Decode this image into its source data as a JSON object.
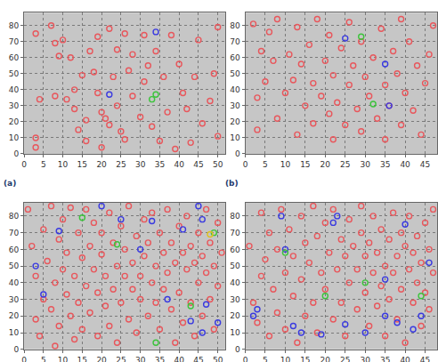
{
  "chart_data": [
    {
      "type": "scatter",
      "title": "(a)",
      "xlim": [
        0,
        52
      ],
      "ylim": [
        0,
        88
      ],
      "xticks": [
        0,
        5,
        10,
        15,
        20,
        25,
        30,
        35,
        40,
        45,
        50
      ],
      "yticks": [
        0,
        10,
        20,
        30,
        40,
        50,
        60,
        70,
        80
      ],
      "grid": true,
      "marker": "circle-open",
      "series": [
        {
          "color": "#e8575c",
          "x": [
            3,
            4,
            3,
            3,
            7,
            8,
            8,
            9,
            10,
            11,
            12,
            13,
            13,
            14,
            15,
            16,
            17,
            18,
            19,
            19,
            20,
            21,
            22,
            22,
            23,
            24,
            24,
            25,
            26,
            27,
            28,
            28,
            30,
            31,
            31,
            32,
            33,
            34,
            35,
            36,
            37,
            38,
            39,
            40,
            41,
            42,
            43,
            44,
            45,
            46,
            48,
            49,
            50,
            50,
            20,
            16,
            26
          ],
          "y": [
            75,
            34,
            10,
            4,
            80,
            69,
            36,
            61,
            71,
            34,
            60,
            28,
            40,
            15,
            49,
            21,
            64,
            51,
            73,
            38,
            26,
            22,
            18,
            78,
            48,
            65,
            30,
            14,
            75,
            52,
            62,
            36,
            23,
            45,
            74,
            55,
            17,
            64,
            8,
            48,
            26,
            74,
            3,
            56,
            38,
            28,
            7,
            48,
            71,
            19,
            33,
            50,
            79,
            11,
            4,
            8,
            9
          ]
        },
        {
          "color": "#3a3ae0",
          "x": [
            34,
            22
          ],
          "y": [
            76,
            37
          ]
        },
        {
          "color": "#3cc43c",
          "x": [
            34,
            33
          ],
          "y": [
            37,
            34
          ]
        }
      ]
    },
    {
      "type": "scatter",
      "title": "(b)",
      "xlim": [
        0,
        48
      ],
      "ylim": [
        0,
        88
      ],
      "xticks": [
        0,
        5,
        10,
        15,
        20,
        25,
        30,
        35,
        40,
        45
      ],
      "yticks": [
        0,
        10,
        20,
        30,
        40,
        50,
        60,
        70,
        80
      ],
      "grid": true,
      "marker": "circle-open",
      "series": [
        {
          "color": "#e8575c",
          "x": [
            2,
            3,
            3,
            4,
            5,
            6,
            7,
            8,
            8,
            10,
            11,
            12,
            13,
            13,
            14,
            15,
            16,
            17,
            17,
            18,
            19,
            20,
            21,
            21,
            22,
            22,
            23,
            24,
            25,
            26,
            26,
            27,
            28,
            29,
            29,
            30,
            31,
            32,
            33,
            34,
            35,
            35,
            36,
            37,
            38,
            39,
            39,
            40,
            41,
            42,
            43,
            44,
            45,
            46,
            47
          ],
          "y": [
            81,
            35,
            15,
            64,
            45,
            76,
            58,
            22,
            84,
            38,
            62,
            46,
            12,
            79,
            56,
            30,
            68,
            19,
            44,
            84,
            36,
            58,
            25,
            74,
            49,
            9,
            32,
            66,
            18,
            43,
            82,
            55,
            28,
            70,
            14,
            48,
            36,
            60,
            22,
            78,
            43,
            9,
            30,
            64,
            50,
            18,
            84,
            38,
            70,
            27,
            55,
            12,
            44,
            62,
            80
          ]
        },
        {
          "color": "#3a3ae0",
          "x": [
            25,
            35,
            36
          ],
          "y": [
            72,
            56,
            30
          ]
        },
        {
          "color": "#3cc43c",
          "x": [
            29,
            32
          ],
          "y": [
            73,
            31
          ]
        }
      ]
    },
    {
      "type": "scatter",
      "xlim": [
        0,
        52
      ],
      "ylim": [
        0,
        88
      ],
      "xticks": [
        0,
        5,
        10,
        15,
        20,
        25,
        30,
        35,
        40,
        45,
        50
      ],
      "yticks": [
        0,
        10,
        20,
        30,
        40,
        50,
        60,
        70,
        80
      ],
      "grid": true,
      "marker": "circle-open",
      "series": [
        {
          "color": "#e8575c",
          "x": [
            1,
            2,
            3,
            3,
            4,
            5,
            5,
            6,
            7,
            7,
            8,
            8,
            9,
            9,
            10,
            10,
            11,
            11,
            12,
            12,
            13,
            13,
            14,
            14,
            15,
            15,
            16,
            16,
            17,
            17,
            18,
            18,
            19,
            19,
            20,
            20,
            21,
            21,
            22,
            22,
            23,
            23,
            24,
            24,
            25,
            25,
            26,
            26,
            27,
            27,
            28,
            28,
            29,
            29,
            30,
            30,
            31,
            31,
            32,
            32,
            33,
            33,
            34,
            34,
            35,
            35,
            36,
            36,
            37,
            37,
            38,
            38,
            39,
            39,
            40,
            40,
            41,
            41,
            42,
            42,
            43,
            43,
            44,
            44,
            45,
            45,
            46,
            46,
            47,
            47,
            48,
            48,
            49,
            49,
            50,
            50,
            51
          ],
          "y": [
            84,
            62,
            44,
            18,
            8,
            72,
            30,
            53,
            86,
            24,
            40,
            2,
            66,
            14,
            78,
            48,
            33,
            58,
            20,
            85,
            44,
            6,
            70,
            28,
            55,
            12,
            38,
            84,
            62,
            22,
            48,
            76,
            8,
            34,
            57,
            70,
            26,
            44,
            82,
            14,
            64,
            36,
            50,
            4,
            74,
            28,
            44,
            60,
            18,
            86,
            36,
            52,
            68,
            10,
            44,
            30,
            78,
            56,
            20,
            64,
            40,
            82,
            50,
            28,
            70,
            12,
            58,
            36,
            84,
            46,
            24,
            64,
            4,
            52,
            74,
            34,
            58,
            16,
            48,
            80,
            28,
            62,
            52,
            8,
            70,
            40,
            56,
            20,
            84,
            46,
            64,
            30,
            50,
            12,
            76,
            38,
            58
          ]
        },
        {
          "color": "#3a3ae0",
          "x": [
            3,
            5,
            9,
            20,
            25,
            30,
            33,
            37,
            41,
            45,
            46,
            46,
            50,
            43,
            47
          ],
          "y": [
            50,
            33,
            71,
            86,
            78,
            60,
            77,
            30,
            72,
            86,
            10,
            78,
            16,
            17,
            27
          ]
        },
        {
          "color": "#3cc43c",
          "x": [
            15,
            24,
            34,
            43,
            49
          ],
          "y": [
            79,
            63,
            4,
            26,
            70
          ]
        },
        {
          "color": "#e0c020",
          "x": [
            48
          ],
          "y": [
            69
          ]
        }
      ]
    },
    {
      "type": "scatter",
      "xlim": [
        0,
        48
      ],
      "ylim": [
        0,
        88
      ],
      "xticks": [
        0,
        5,
        10,
        15,
        20,
        25,
        30,
        35,
        40,
        45
      ],
      "yticks": [
        0,
        10,
        20,
        30,
        40,
        50,
        60,
        70,
        80
      ],
      "grid": true,
      "marker": "circle-open",
      "series": [
        {
          "color": "#e8575c",
          "x": [
            1,
            2,
            3,
            4,
            4,
            5,
            6,
            6,
            7,
            8,
            8,
            9,
            10,
            10,
            11,
            12,
            12,
            13,
            14,
            14,
            15,
            15,
            16,
            17,
            17,
            18,
            18,
            19,
            20,
            20,
            21,
            22,
            22,
            23,
            24,
            24,
            25,
            25,
            26,
            26,
            27,
            28,
            28,
            29,
            29,
            30,
            30,
            31,
            31,
            32,
            32,
            33,
            33,
            34,
            34,
            35,
            35,
            36,
            36,
            37,
            37,
            38,
            38,
            39,
            39,
            40,
            40,
            41,
            41,
            42,
            42,
            43,
            43,
            44,
            44,
            45,
            45,
            46,
            46,
            47,
            47
          ],
          "y": [
            62,
            28,
            16,
            82,
            44,
            54,
            8,
            70,
            36,
            60,
            22,
            84,
            46,
            12,
            72,
            32,
            56,
            4,
            80,
            42,
            64,
            20,
            52,
            28,
            86,
            68,
            10,
            46,
            36,
            76,
            58,
            18,
            84,
            48,
            66,
            28,
            8,
            56,
            40,
            78,
            62,
            24,
            48,
            86,
            70,
            34,
            56,
            14,
            64,
            46,
            80,
            26,
            58,
            72,
            38,
            50,
            8,
            66,
            30,
            82,
            46,
            56,
            18,
            70,
            36,
            62,
            4,
            48,
            80,
            28,
            58,
            68,
            40,
            52,
            14,
            76,
            34,
            60,
            24,
            84,
            46
          ]
        },
        {
          "color": "#3a3ae0",
          "x": [
            2,
            3,
            9,
            10,
            12,
            14,
            19,
            22,
            23,
            25,
            30,
            35,
            35,
            38,
            40,
            42,
            44,
            46
          ],
          "y": [
            20,
            24,
            80,
            60,
            14,
            10,
            9,
            76,
            80,
            15,
            10,
            42,
            20,
            16,
            75,
            12,
            20,
            52
          ]
        },
        {
          "color": "#3cc43c",
          "x": [
            10,
            20,
            30,
            44
          ],
          "y": [
            58,
            32,
            40,
            32
          ]
        }
      ]
    }
  ]
}
